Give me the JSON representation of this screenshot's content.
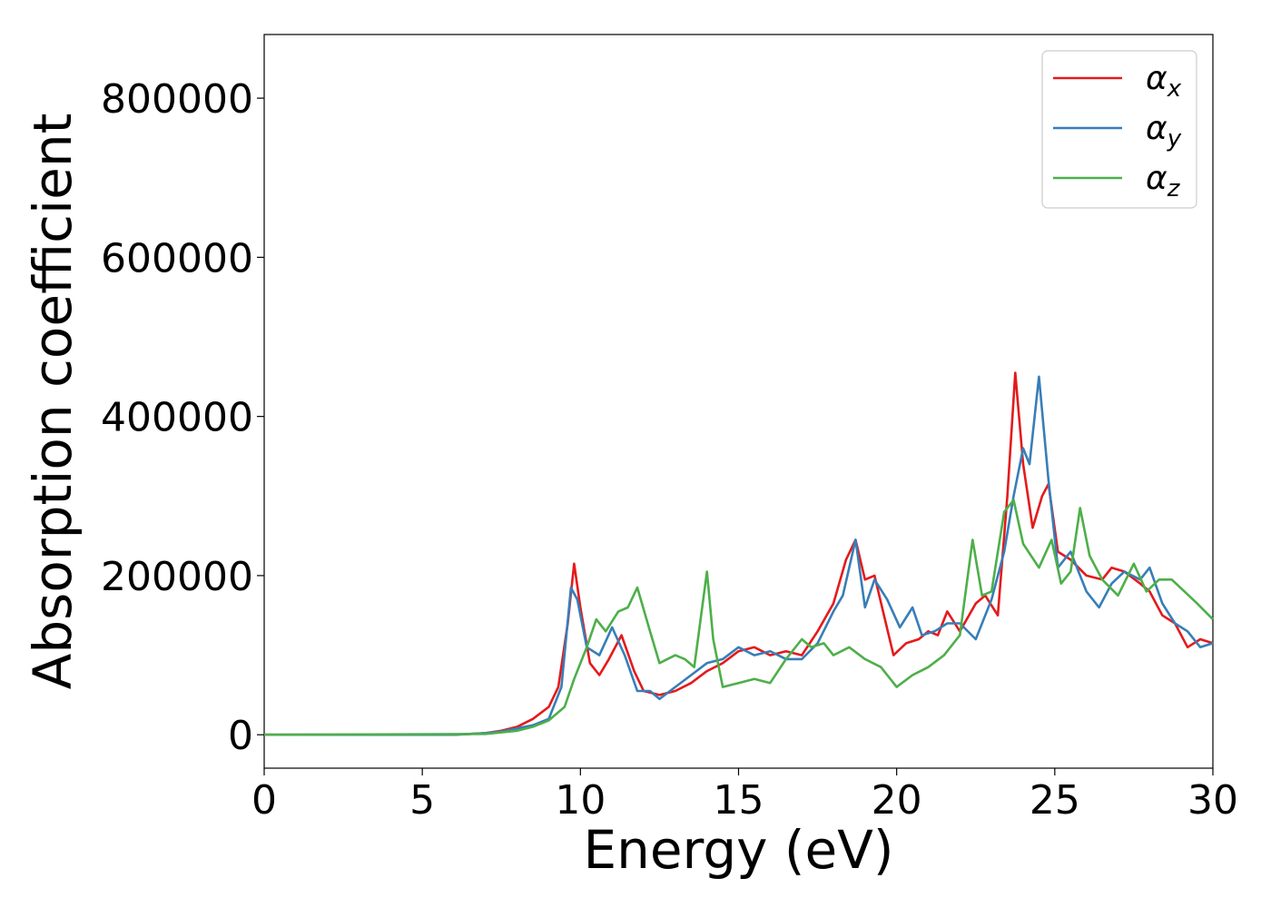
{
  "chart_data": {
    "type": "line",
    "title": "",
    "xlabel": "Energy (eV)",
    "ylabel": "Absorption coefficient",
    "xlim": [
      0,
      30
    ],
    "ylim": [
      -42000,
      880000
    ],
    "x_ticks": [
      0,
      5,
      10,
      15,
      20,
      25,
      30
    ],
    "y_ticks": [
      0,
      200000,
      400000,
      600000,
      800000
    ],
    "grid": false,
    "legend_position": "top-right",
    "series": [
      {
        "name": "α_x",
        "label_main": "α",
        "label_sub": "x",
        "color": "#e41a1c",
        "points": [
          [
            0,
            0
          ],
          [
            6,
            0
          ],
          [
            7,
            2000
          ],
          [
            7.5,
            5000
          ],
          [
            8,
            10000
          ],
          [
            8.5,
            20000
          ],
          [
            9,
            35000
          ],
          [
            9.3,
            60000
          ],
          [
            9.6,
            140000
          ],
          [
            9.8,
            215000
          ],
          [
            10,
            160000
          ],
          [
            10.3,
            90000
          ],
          [
            10.6,
            75000
          ],
          [
            10.9,
            95000
          ],
          [
            11.3,
            125000
          ],
          [
            11.7,
            80000
          ],
          [
            12,
            55000
          ],
          [
            12.5,
            50000
          ],
          [
            13,
            55000
          ],
          [
            13.5,
            65000
          ],
          [
            14,
            80000
          ],
          [
            14.5,
            90000
          ],
          [
            15,
            105000
          ],
          [
            15.5,
            110000
          ],
          [
            16,
            100000
          ],
          [
            16.5,
            105000
          ],
          [
            17,
            100000
          ],
          [
            17.5,
            130000
          ],
          [
            18,
            165000
          ],
          [
            18.4,
            220000
          ],
          [
            18.7,
            245000
          ],
          [
            19,
            195000
          ],
          [
            19.3,
            200000
          ],
          [
            19.6,
            150000
          ],
          [
            19.9,
            100000
          ],
          [
            20.3,
            115000
          ],
          [
            20.7,
            120000
          ],
          [
            21,
            130000
          ],
          [
            21.3,
            125000
          ],
          [
            21.6,
            155000
          ],
          [
            22,
            130000
          ],
          [
            22.5,
            165000
          ],
          [
            22.8,
            175000
          ],
          [
            23.2,
            150000
          ],
          [
            23.5,
            300000
          ],
          [
            23.75,
            455000
          ],
          [
            24,
            340000
          ],
          [
            24.3,
            260000
          ],
          [
            24.6,
            300000
          ],
          [
            24.8,
            315000
          ],
          [
            25.1,
            230000
          ],
          [
            25.5,
            220000
          ],
          [
            26,
            200000
          ],
          [
            26.5,
            195000
          ],
          [
            26.8,
            210000
          ],
          [
            27.2,
            205000
          ],
          [
            27.7,
            190000
          ],
          [
            28,
            180000
          ],
          [
            28.4,
            150000
          ],
          [
            28.8,
            140000
          ],
          [
            29.2,
            110000
          ],
          [
            29.6,
            120000
          ],
          [
            30,
            115000
          ]
        ]
      },
      {
        "name": "α_y",
        "label_main": "α",
        "label_sub": "y",
        "color": "#377eb8",
        "points": [
          [
            0,
            0
          ],
          [
            6,
            0
          ],
          [
            7,
            2000
          ],
          [
            7.5,
            4000
          ],
          [
            8,
            8000
          ],
          [
            8.5,
            12000
          ],
          [
            9,
            20000
          ],
          [
            9.4,
            60000
          ],
          [
            9.7,
            185000
          ],
          [
            9.9,
            170000
          ],
          [
            10.2,
            110000
          ],
          [
            10.6,
            100000
          ],
          [
            11,
            135000
          ],
          [
            11.4,
            100000
          ],
          [
            11.8,
            55000
          ],
          [
            12.2,
            55000
          ],
          [
            12.5,
            45000
          ],
          [
            13,
            60000
          ],
          [
            13.5,
            75000
          ],
          [
            14,
            90000
          ],
          [
            14.5,
            95000
          ],
          [
            15,
            110000
          ],
          [
            15.5,
            100000
          ],
          [
            16,
            105000
          ],
          [
            16.5,
            95000
          ],
          [
            17,
            95000
          ],
          [
            17.5,
            115000
          ],
          [
            18,
            155000
          ],
          [
            18.3,
            175000
          ],
          [
            18.7,
            245000
          ],
          [
            19,
            160000
          ],
          [
            19.3,
            195000
          ],
          [
            19.7,
            170000
          ],
          [
            20.1,
            135000
          ],
          [
            20.5,
            160000
          ],
          [
            20.8,
            125000
          ],
          [
            21.2,
            130000
          ],
          [
            21.6,
            140000
          ],
          [
            22,
            140000
          ],
          [
            22.5,
            120000
          ],
          [
            23,
            170000
          ],
          [
            23.4,
            230000
          ],
          [
            23.7,
            300000
          ],
          [
            24,
            360000
          ],
          [
            24.2,
            340000
          ],
          [
            24.5,
            450000
          ],
          [
            24.8,
            320000
          ],
          [
            25.1,
            210000
          ],
          [
            25.5,
            230000
          ],
          [
            26,
            180000
          ],
          [
            26.4,
            160000
          ],
          [
            26.8,
            190000
          ],
          [
            27.2,
            205000
          ],
          [
            27.7,
            195000
          ],
          [
            28,
            210000
          ],
          [
            28.4,
            165000
          ],
          [
            28.8,
            140000
          ],
          [
            29.2,
            130000
          ],
          [
            29.6,
            110000
          ],
          [
            30,
            115000
          ]
        ]
      },
      {
        "name": "α_z",
        "label_main": "α",
        "label_sub": "z",
        "color": "#4daf4a",
        "points": [
          [
            0,
            0
          ],
          [
            7,
            1000
          ],
          [
            8,
            5000
          ],
          [
            8.5,
            10000
          ],
          [
            9,
            18000
          ],
          [
            9.5,
            35000
          ],
          [
            9.8,
            70000
          ],
          [
            10.2,
            110000
          ],
          [
            10.5,
            145000
          ],
          [
            10.8,
            130000
          ],
          [
            11.2,
            155000
          ],
          [
            11.5,
            160000
          ],
          [
            11.8,
            185000
          ],
          [
            12.2,
            130000
          ],
          [
            12.5,
            90000
          ],
          [
            13,
            100000
          ],
          [
            13.3,
            95000
          ],
          [
            13.6,
            85000
          ],
          [
            13.9,
            175000
          ],
          [
            14,
            205000
          ],
          [
            14.2,
            120000
          ],
          [
            14.5,
            60000
          ],
          [
            15,
            65000
          ],
          [
            15.5,
            70000
          ],
          [
            16,
            65000
          ],
          [
            16.5,
            95000
          ],
          [
            17,
            120000
          ],
          [
            17.3,
            110000
          ],
          [
            17.7,
            115000
          ],
          [
            18,
            100000
          ],
          [
            18.5,
            110000
          ],
          [
            19,
            95000
          ],
          [
            19.5,
            85000
          ],
          [
            20,
            60000
          ],
          [
            20.5,
            75000
          ],
          [
            21,
            85000
          ],
          [
            21.5,
            100000
          ],
          [
            22,
            125000
          ],
          [
            22.4,
            245000
          ],
          [
            22.7,
            175000
          ],
          [
            23,
            180000
          ],
          [
            23.4,
            280000
          ],
          [
            23.7,
            295000
          ],
          [
            24,
            240000
          ],
          [
            24.5,
            210000
          ],
          [
            24.9,
            245000
          ],
          [
            25.2,
            190000
          ],
          [
            25.5,
            205000
          ],
          [
            25.8,
            285000
          ],
          [
            26.1,
            225000
          ],
          [
            26.5,
            195000
          ],
          [
            27,
            175000
          ],
          [
            27.5,
            215000
          ],
          [
            27.9,
            180000
          ],
          [
            28.3,
            195000
          ],
          [
            28.7,
            195000
          ],
          [
            29.1,
            180000
          ],
          [
            29.5,
            165000
          ],
          [
            30,
            145000
          ]
        ]
      }
    ]
  }
}
